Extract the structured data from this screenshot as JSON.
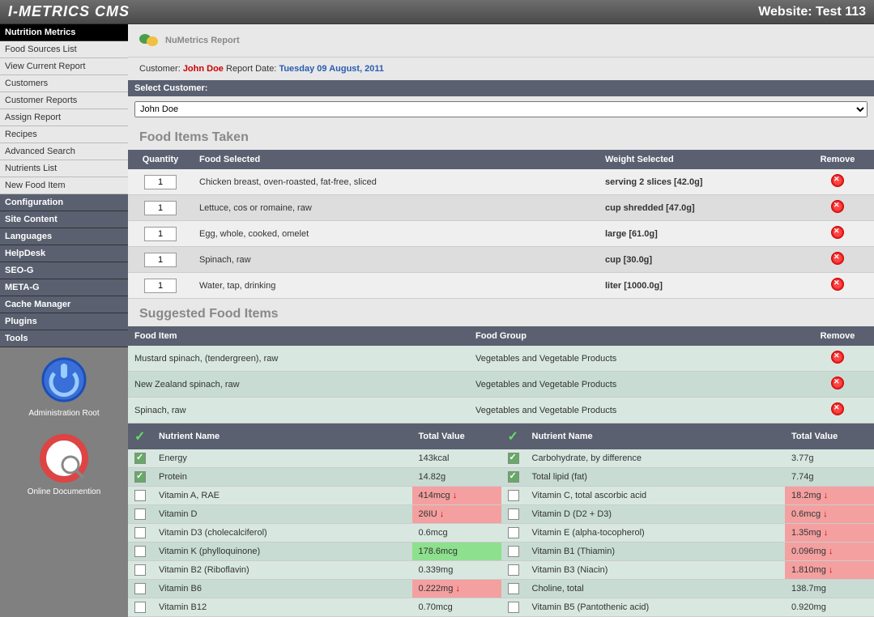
{
  "header": {
    "brand": "I-METRICS CMS",
    "site": "Website: Test 113"
  },
  "sidebar": {
    "groups": [
      {
        "header": "Nutrition Metrics",
        "black": true,
        "items": [
          "Food Sources List",
          "View Current Report",
          "Customers",
          "Customer Reports",
          "Assign Report",
          "Recipes",
          "Advanced Search",
          "Nutrients List",
          "New Food Item"
        ]
      },
      {
        "header": "Configuration",
        "items": []
      },
      {
        "header": "Site Content",
        "items": []
      },
      {
        "header": "Languages",
        "items": []
      },
      {
        "header": "HelpDesk",
        "items": []
      },
      {
        "header": "SEO-G",
        "items": []
      },
      {
        "header": "META-G",
        "items": []
      },
      {
        "header": "Cache Manager",
        "items": []
      },
      {
        "header": "Plugins",
        "items": []
      },
      {
        "header": "Tools",
        "items": []
      }
    ],
    "admin": [
      {
        "label": "Administration Root"
      },
      {
        "label": "Online Documention"
      }
    ]
  },
  "page": {
    "title": "NuMetrics Report",
    "meta_customer_label": "Customer:",
    "meta_customer": "John Doe",
    "meta_date_label": "Report Date:",
    "meta_date": "Tuesday 09 August, 2011",
    "select_label": "Select Customer:",
    "select_value": "John Doe"
  },
  "food_items": {
    "title": "Food Items Taken",
    "cols": [
      "Quantity",
      "Food Selected",
      "Weight Selected",
      "Remove"
    ],
    "rows": [
      {
        "qty": "1",
        "food": "Chicken breast, oven-roasted, fat-free, sliced",
        "weight": "serving 2 slices [42.0g]"
      },
      {
        "qty": "1",
        "food": "Lettuce, cos or romaine, raw",
        "weight": "cup shredded [47.0g]"
      },
      {
        "qty": "1",
        "food": "Egg, whole, cooked, omelet",
        "weight": "large [61.0g]"
      },
      {
        "qty": "1",
        "food": "Spinach, raw",
        "weight": "cup [30.0g]"
      },
      {
        "qty": "1",
        "food": "Water, tap, drinking",
        "weight": "liter [1000.0g]"
      }
    ]
  },
  "suggested": {
    "title": "Suggested Food Items",
    "cols": [
      "Food Item",
      "Food Group",
      "Remove"
    ],
    "rows": [
      {
        "food": "Mustard spinach, (tendergreen), raw",
        "group": "Vegetables and Vegetable Products"
      },
      {
        "food": "New Zealand spinach, raw",
        "group": "Vegetables and Vegetable Products"
      },
      {
        "food": "Spinach, raw",
        "group": "Vegetables and Vegetable Products"
      }
    ]
  },
  "nutrients": {
    "cols": [
      "Nutrient Name",
      "Total Value"
    ],
    "left": [
      {
        "chk": true,
        "name": "Energy",
        "val": "143kcal",
        "flag": ""
      },
      {
        "chk": true,
        "name": "Protein",
        "val": "14.82g",
        "flag": ""
      },
      {
        "chk": false,
        "name": "Vitamin A, RAE",
        "val": "414mcg",
        "flag": "red"
      },
      {
        "chk": false,
        "name": "Vitamin D",
        "val": "26IU",
        "flag": "red"
      },
      {
        "chk": false,
        "name": "Vitamin D3 (cholecalciferol)",
        "val": "0.6mcg",
        "flag": ""
      },
      {
        "chk": false,
        "name": "Vitamin K (phylloquinone)",
        "val": "178.6mcg",
        "flag": "green"
      },
      {
        "chk": false,
        "name": "Vitamin B2 (Riboflavin)",
        "val": "0.339mg",
        "flag": ""
      },
      {
        "chk": false,
        "name": "Vitamin B6",
        "val": "0.222mg",
        "flag": "red"
      },
      {
        "chk": false,
        "name": "Vitamin B12",
        "val": "0.70mcg",
        "flag": ""
      }
    ],
    "right": [
      {
        "chk": true,
        "name": "Carbohydrate, by difference",
        "val": "3.77g",
        "flag": ""
      },
      {
        "chk": true,
        "name": "Total lipid (fat)",
        "val": "7.74g",
        "flag": ""
      },
      {
        "chk": false,
        "name": "Vitamin C, total ascorbic acid",
        "val": "18.2mg",
        "flag": "red"
      },
      {
        "chk": false,
        "name": "Vitamin D (D2 + D3)",
        "val": "0.6mcg",
        "flag": "red"
      },
      {
        "chk": false,
        "name": "Vitamin E (alpha-tocopherol)",
        "val": "1.35mg",
        "flag": "red"
      },
      {
        "chk": false,
        "name": "Vitamin B1 (Thiamin)",
        "val": "0.096mg",
        "flag": "red"
      },
      {
        "chk": false,
        "name": "Vitamin B3 (Niacin)",
        "val": "1.810mg",
        "flag": "red"
      },
      {
        "chk": false,
        "name": "Choline, total",
        "val": "138.7mg",
        "flag": ""
      },
      {
        "chk": false,
        "name": "Vitamin B5 (Pantothenic acid)",
        "val": "0.920mg",
        "flag": ""
      }
    ]
  }
}
